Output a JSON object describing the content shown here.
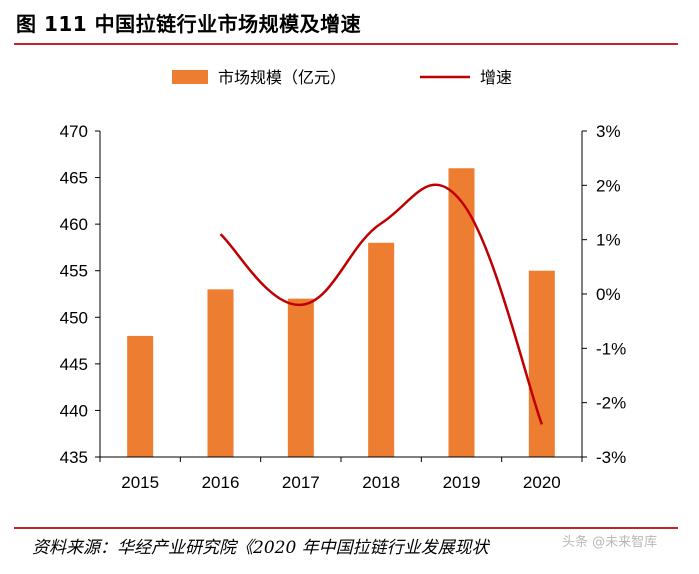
{
  "header": {
    "title": "图 111 中国拉链行业市场规模及增速"
  },
  "footer": {
    "source": "资料来源：华经产业研究院《2020 年中国拉链行业发展现状",
    "watermark": "头条 @未来智库"
  },
  "colors": {
    "bar": "#ed7d31",
    "line": "#c00000",
    "rule": "#c0252a",
    "axis": "#000000"
  },
  "chart_data": {
    "type": "bar",
    "categories": [
      "2015",
      "2016",
      "2017",
      "2018",
      "2019",
      "2020"
    ],
    "series": [
      {
        "name": "市场规模（亿元）",
        "type": "bar",
        "axis": "left",
        "values": [
          448,
          453,
          452,
          458,
          466,
          455
        ]
      },
      {
        "name": "增速",
        "type": "line",
        "axis": "right",
        "unit": "%",
        "values": [
          null,
          1.1,
          -0.2,
          1.3,
          1.7,
          -2.4
        ]
      }
    ],
    "y_left": {
      "min": 435,
      "max": 470,
      "ticks": [
        "435",
        "440",
        "445",
        "450",
        "455",
        "460",
        "465",
        "470"
      ]
    },
    "y_right": {
      "min": -3,
      "max": 3,
      "ticks": [
        "-3%",
        "-2%",
        "-1%",
        "0%",
        "1%",
        "2%",
        "3%"
      ]
    },
    "legend": {
      "position": "top"
    },
    "grid": false
  }
}
